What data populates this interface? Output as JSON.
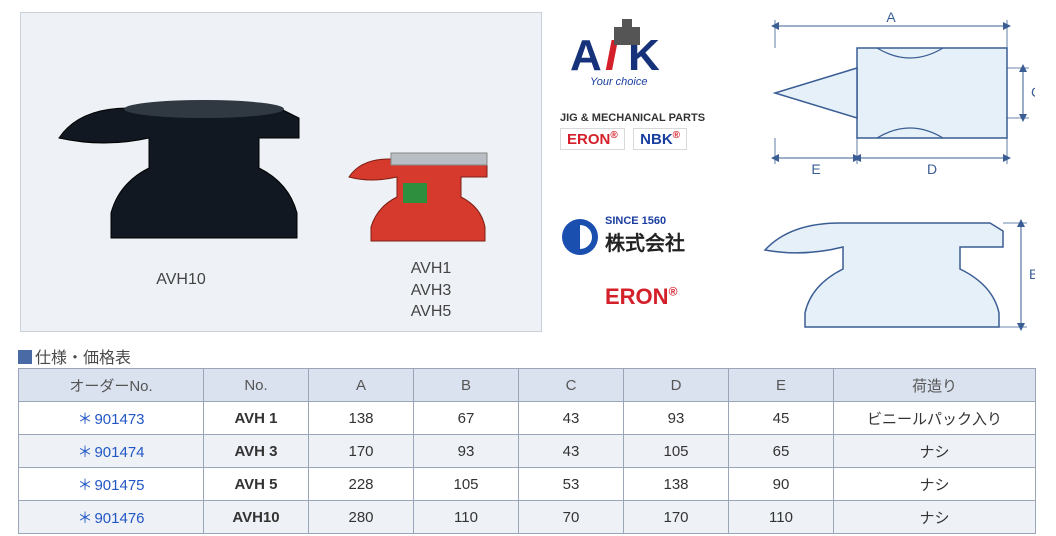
{
  "photo_labels": {
    "avh10": "AVH10",
    "avh1_3_5": "AVH1\nAVH3\nAVH5"
  },
  "logos": {
    "aik_tag": "Your choice",
    "jig_label": "JIG & MECHANICAL PARTS",
    "eron": "ERON",
    "nbk": "NBK",
    "since": "SINCE 1560",
    "company": "株式会社",
    "eron2": "ERON"
  },
  "diagram": {
    "dim_a": "A",
    "dim_b": "B",
    "dim_c": "C",
    "dim_d": "D",
    "dim_e": "E",
    "fill": "#e6f0f8",
    "stroke": "#3a5d94"
  },
  "section_heading": "仕様・価格表",
  "table": {
    "headers": {
      "order_no": "オーダーNo.",
      "no": "No.",
      "a": "A",
      "b": "B",
      "c": "C",
      "d": "D",
      "e": "E",
      "packing": "荷造り"
    },
    "rows": [
      {
        "order": "901473",
        "no": "AVH  1",
        "a": "138",
        "b": "67",
        "c": "43",
        "d": "93",
        "e": "45",
        "pack": "ビニールパック入り"
      },
      {
        "order": "901474",
        "no": "AVH  3",
        "a": "170",
        "b": "93",
        "c": "43",
        "d": "105",
        "e": "65",
        "pack": "ナシ"
      },
      {
        "order": "901475",
        "no": "AVH  5",
        "a": "228",
        "b": "105",
        "c": "53",
        "d": "138",
        "e": "90",
        "pack": "ナシ"
      },
      {
        "order": "901476",
        "no": "AVH10",
        "a": "280",
        "b": "110",
        "c": "70",
        "d": "170",
        "e": "110",
        "pack": "ナシ"
      }
    ]
  },
  "colors": {
    "table_header_bg": "#dbe2ef",
    "table_border": "#9aa6b8",
    "link_blue": "#2257c5",
    "brand_red": "#d4202a",
    "brand_blue": "#1a3ea0",
    "panel_bg": "#eef1f5"
  }
}
